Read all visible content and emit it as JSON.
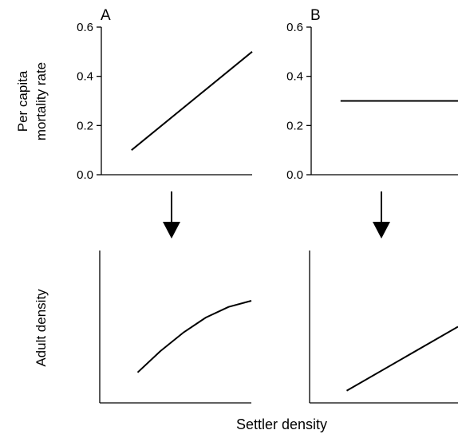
{
  "figure": {
    "xlabel": "Settler density",
    "top_ylabel_line1": "Per capita",
    "top_ylabel_line2": "mortality rate",
    "bottom_ylabel": "Adult density"
  },
  "chart_data": [
    {
      "type": "line",
      "panel": "A",
      "title": "A",
      "xlabel": "",
      "ylabel": "Per capita mortality rate",
      "ylim": [
        0,
        0.6
      ],
      "yticks": [
        0.0,
        0.2,
        0.4,
        0.6
      ],
      "ytick_labels": [
        "0.0",
        "0.2",
        "0.4",
        "0.6"
      ],
      "xlim": [
        0,
        1
      ],
      "grid": false,
      "series": [
        {
          "x": [
            0.2,
            1.0
          ],
          "y": [
            0.1,
            0.5
          ]
        }
      ]
    },
    {
      "type": "line",
      "panel": "B",
      "title": "B",
      "xlabel": "",
      "ylabel": "",
      "ylim": [
        0,
        0.6
      ],
      "yticks": [
        0.0,
        0.2,
        0.4,
        0.6
      ],
      "ytick_labels": [
        "0.0",
        "0.2",
        "0.4",
        "0.6"
      ],
      "xlim": [
        0,
        1
      ],
      "grid": false,
      "series": [
        {
          "x": [
            0.2,
            1.0
          ],
          "y": [
            0.3,
            0.3
          ]
        }
      ]
    },
    {
      "type": "line",
      "panel": "A-bottom",
      "title": "",
      "xlabel": "Settler density",
      "ylabel": "Adult density",
      "ylim": [
        0,
        1
      ],
      "xlim": [
        0,
        1
      ],
      "grid": false,
      "series": [
        {
          "x": [
            0.25,
            0.4,
            0.55,
            0.7,
            0.85,
            1.0
          ],
          "y": [
            0.2,
            0.34,
            0.46,
            0.56,
            0.63,
            0.67
          ]
        }
      ]
    },
    {
      "type": "line",
      "panel": "B-bottom",
      "title": "",
      "xlabel": "Settler density",
      "ylabel": "",
      "ylim": [
        0,
        1
      ],
      "xlim": [
        0,
        1
      ],
      "grid": false,
      "series": [
        {
          "x": [
            0.25,
            1.0
          ],
          "y": [
            0.08,
            0.5
          ]
        }
      ]
    }
  ]
}
